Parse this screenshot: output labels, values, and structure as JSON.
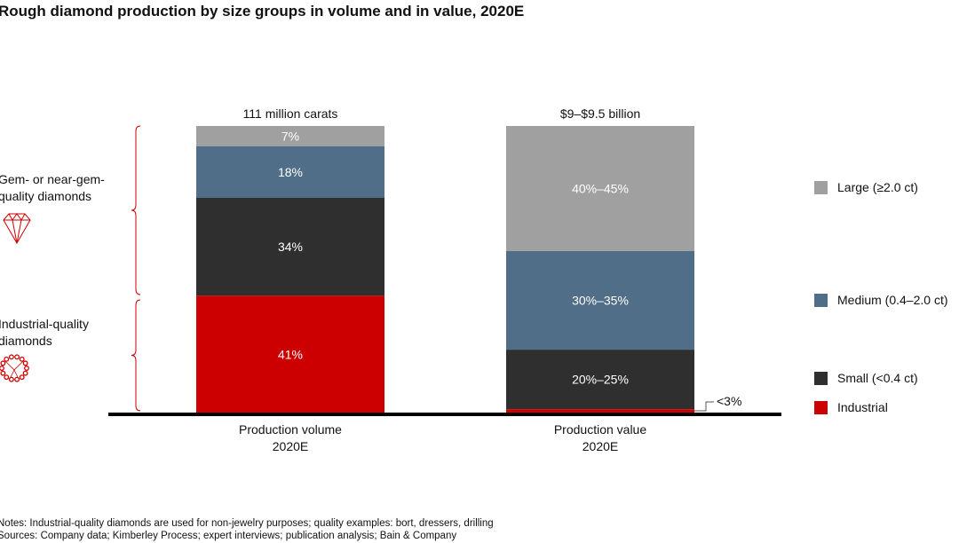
{
  "title": "Rough diamond production by size groups in volume and in value, 2020E",
  "notes": [
    "Notes: Industrial-quality diamonds are used for non-jewelry purposes; quality examples: bort, dressers, drilling",
    "Sources: Company data; Kimberley Process; expert interviews; publication analysis; Bain & Company"
  ],
  "groups": [
    {
      "label_lines": [
        "Gem- or near-gem-",
        "quality diamonds"
      ],
      "icon": "gem-diamond-icon"
    },
    {
      "label_lines": [
        "Industrial-quality",
        "diamonds"
      ],
      "icon": "industrial-diamond-icon"
    }
  ],
  "colors": {
    "Large": "#a0a0a0",
    "Medium": "#506e87",
    "Small": "#2f2f2f",
    "Industrial": "#cc0000",
    "accent": "#cc0000"
  },
  "chart_data": {
    "type": "bar",
    "stacked": true,
    "normalized": true,
    "title": "Rough diamond production by size groups in volume and in value, 2020E",
    "categories": [
      "Production volume 2020E",
      "Production value 2020E"
    ],
    "category_lines": [
      [
        "Production volume",
        "2020E"
      ],
      [
        "Production value",
        "2020E"
      ]
    ],
    "totals": [
      "111 million carats",
      "$9–$9.5 billion"
    ],
    "legend_position": "right",
    "series": [
      {
        "name": "Industrial",
        "legend": "Industrial",
        "values": [
          41,
          1.5
        ],
        "labels": [
          "41%",
          "<3%"
        ]
      },
      {
        "name": "Small",
        "legend": "Small (<0.4 ct)",
        "values": [
          34,
          20.7
        ],
        "labels": [
          "34%",
          "20%–25%"
        ]
      },
      {
        "name": "Medium",
        "legend": "Medium (0.4–2.0 ct)",
        "values": [
          18,
          34.3
        ],
        "labels": [
          "18%",
          "30%–35%"
        ]
      },
      {
        "name": "Large",
        "legend": "Large (≥2.0 ct)",
        "values": [
          7,
          43.5
        ],
        "labels": [
          "7%",
          "40%–45%"
        ]
      }
    ]
  }
}
